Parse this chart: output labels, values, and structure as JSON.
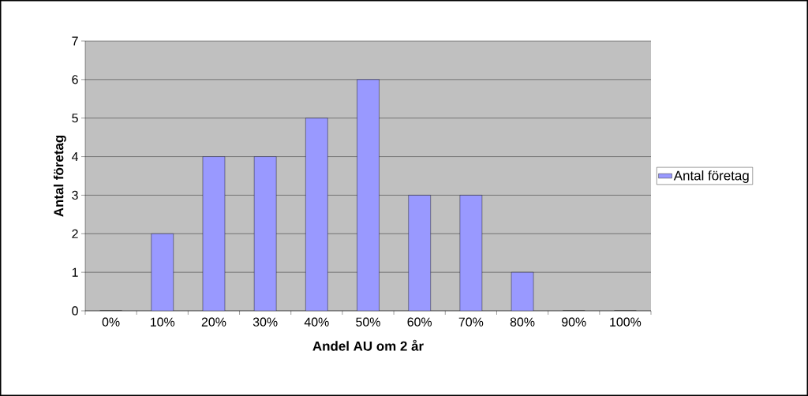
{
  "chart_data": {
    "type": "bar",
    "categories": [
      "0%",
      "10%",
      "20%",
      "30%",
      "40%",
      "50%",
      "60%",
      "70%",
      "80%",
      "90%",
      "100%"
    ],
    "series": [
      {
        "name": "Antal företag",
        "color": "#9999ff",
        "values": [
          0,
          2,
          4,
          4,
          5,
          6,
          3,
          3,
          1,
          0,
          0
        ]
      }
    ],
    "xlabel": "Andel AU om 2 år",
    "ylabel": "Antal företag",
    "ylim": [
      0,
      7
    ],
    "yticks": [
      0,
      1,
      2,
      3,
      4,
      5,
      6,
      7
    ],
    "grid": "y",
    "legend": "right"
  }
}
